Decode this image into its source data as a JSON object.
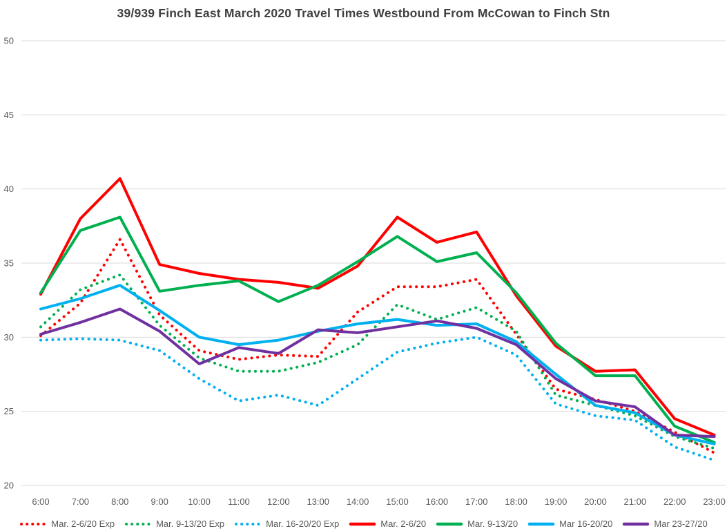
{
  "chart_data": {
    "type": "line",
    "title": "39/939 Finch East March 2020 Travel Times Westbound From McCowan to Finch Stn",
    "x_labels": [
      "6:00",
      "7:00",
      "8:00",
      "9:00",
      "10:00",
      "11:00",
      "12:00",
      "13:00",
      "14:00",
      "15:00",
      "16:00",
      "17:00",
      "18:00",
      "19:00",
      "20:00",
      "21:00",
      "22:00",
      "23:00"
    ],
    "y_ticks": [
      20,
      25,
      30,
      35,
      40,
      45,
      50
    ],
    "y_range": [
      20,
      50
    ],
    "grid": "horizontal-only",
    "legend_position": "bottom",
    "colors": {
      "grid": "#D9D9D9",
      "tick_text": "#595959",
      "title_text": "#404040",
      "red": "#FF0000",
      "green": "#00B050",
      "cyan": "#00B0F0",
      "purple": "#7030A0"
    },
    "series": [
      {
        "name": "Mar. 2-6/20 Exp",
        "color": "#FF0000",
        "style": "dotted",
        "values": [
          30.1,
          32.3,
          36.6,
          31.5,
          29.1,
          28.5,
          28.8,
          28.7,
          31.7,
          33.4,
          33.4,
          33.9,
          30.2,
          26.5,
          25.8,
          25.0,
          23.6,
          22.2
        ]
      },
      {
        "name": "Mar. 9-13/20 Exp",
        "color": "#00B050",
        "style": "dotted",
        "values": [
          30.7,
          33.2,
          34.2,
          30.8,
          28.6,
          27.7,
          27.7,
          28.3,
          29.5,
          32.2,
          31.2,
          32.0,
          30.4,
          26.1,
          25.4,
          24.7,
          23.3,
          22.5
        ]
      },
      {
        "name": "Mar. 16-20/20 Exp",
        "color": "#00B0F0",
        "style": "dotted",
        "values": [
          29.8,
          29.9,
          29.8,
          29.1,
          27.2,
          25.7,
          26.1,
          25.4,
          27.2,
          29.0,
          29.6,
          30.0,
          28.8,
          25.5,
          24.7,
          24.4,
          22.6,
          21.7
        ]
      },
      {
        "name": "Mar. 2-6/20",
        "color": "#FF0000",
        "style": "solid",
        "values": [
          32.9,
          38.0,
          40.7,
          34.9,
          34.3,
          33.9,
          33.7,
          33.3,
          34.8,
          38.1,
          36.4,
          37.1,
          32.8,
          29.4,
          27.7,
          27.8,
          24.5,
          23.4
        ]
      },
      {
        "name": "Mar. 9-13/20",
        "color": "#00B050",
        "style": "solid",
        "values": [
          33.0,
          37.2,
          38.1,
          33.1,
          33.5,
          33.8,
          32.4,
          33.5,
          35.1,
          36.8,
          35.1,
          35.7,
          33.0,
          29.6,
          27.4,
          27.4,
          24.0,
          22.9
        ]
      },
      {
        "name": "Mar 16-20/20",
        "color": "#00B0F0",
        "style": "solid",
        "values": [
          31.9,
          32.6,
          33.5,
          31.8,
          30.0,
          29.5,
          29.8,
          30.4,
          30.9,
          31.2,
          30.8,
          30.9,
          29.7,
          27.5,
          25.4,
          24.9,
          23.4,
          22.8
        ]
      },
      {
        "name": "Mar 23-27/20",
        "color": "#7030A0",
        "style": "solid",
        "values": [
          30.2,
          31.0,
          31.9,
          30.4,
          28.2,
          29.3,
          28.9,
          30.5,
          30.3,
          30.7,
          31.1,
          30.6,
          29.5,
          27.2,
          25.7,
          25.3,
          23.4,
          23.3
        ]
      }
    ]
  }
}
